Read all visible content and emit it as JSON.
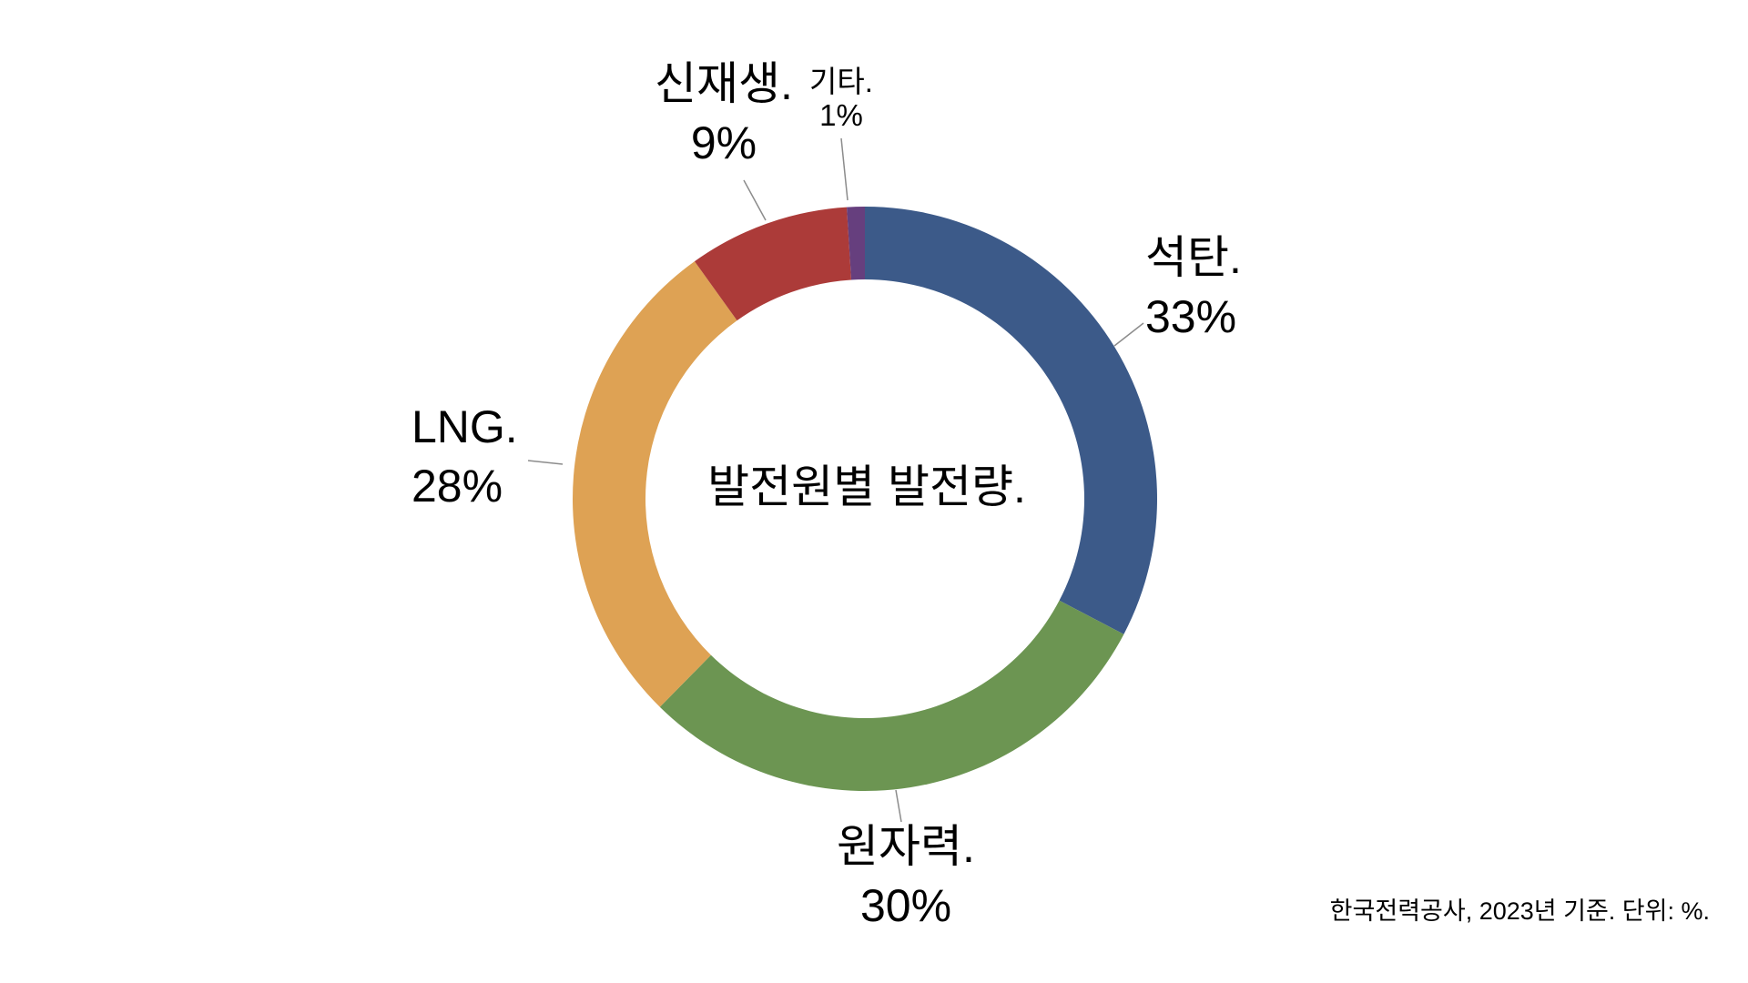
{
  "chart_data": {
    "type": "pie",
    "subtype": "donut",
    "title": "발전원별 발전량.",
    "source": "한국전력공사, 2023년 기준. 단위: %.",
    "unit": "%",
    "legend_position": "callouts-with-leader-lines",
    "start_angle_deg": 0,
    "direction": "clockwise",
    "categories": [
      "석탄",
      "원자력",
      "LNG",
      "신재생",
      "기타"
    ],
    "ids": [
      "coal",
      "nuclear",
      "lng",
      "renewable",
      "other"
    ],
    "values": [
      33,
      30,
      28,
      9,
      1
    ],
    "colors": [
      "#3C5A89",
      "#6C9552",
      "#DEA254",
      "#AC3B39",
      "#663F7E"
    ],
    "leader_line_color": "#8c8c8c",
    "callouts": {
      "coal": {
        "label": "석탄.",
        "value": "33%"
      },
      "nuclear": {
        "label": "원자력.",
        "value": "30%"
      },
      "lng": {
        "label": "LNG.",
        "value": "28%"
      },
      "renewable": {
        "label": "신재생.",
        "value": "9%"
      },
      "other": {
        "label": "기타.",
        "value": "1%"
      }
    }
  }
}
